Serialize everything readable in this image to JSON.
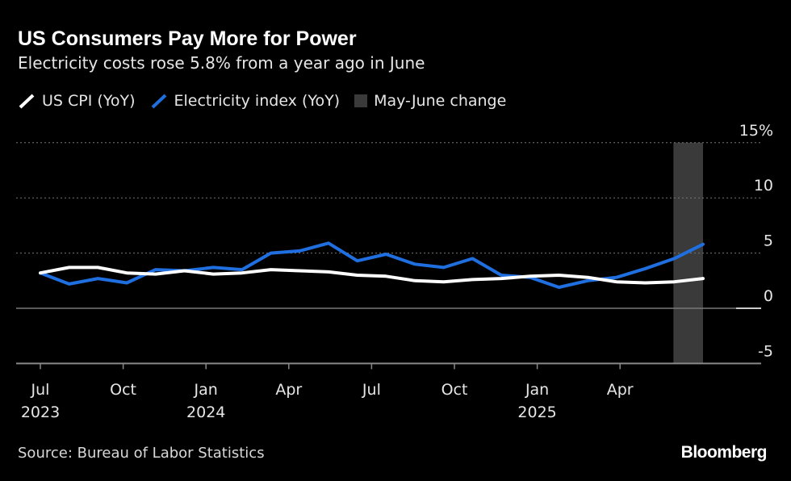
{
  "title": "US Consumers Pay More for Power",
  "subtitle": "Electricity costs rose 5.8% from a year ago in June",
  "source": "Source: Bureau of Labor Statistics",
  "logo": "Bloomberg",
  "chart_data": {
    "type": "line",
    "x": [
      "2023-07",
      "2023-08",
      "2023-09",
      "2023-10",
      "2023-11",
      "2023-12",
      "2024-01",
      "2024-02",
      "2024-03",
      "2024-04",
      "2024-05",
      "2024-06",
      "2024-07",
      "2024-08",
      "2024-09",
      "2024-10",
      "2024-11",
      "2024-12",
      "2025-01",
      "2025-02",
      "2025-03",
      "2025-04",
      "2025-05",
      "2025-06"
    ],
    "series": [
      {
        "name": "US CPI (YoY)",
        "color": "#ffffff",
        "values": [
          3.2,
          3.7,
          3.7,
          3.2,
          3.1,
          3.4,
          3.1,
          3.2,
          3.5,
          3.4,
          3.3,
          3.0,
          2.9,
          2.5,
          2.4,
          2.6,
          2.7,
          2.9,
          3.0,
          2.8,
          2.4,
          2.3,
          2.4,
          2.7
        ]
      },
      {
        "name": "Electricity index (YoY)",
        "color": "#1f6fe0",
        "values": [
          3.2,
          2.2,
          2.7,
          2.3,
          3.5,
          3.4,
          3.7,
          3.5,
          5.0,
          5.2,
          5.9,
          4.3,
          4.9,
          4.0,
          3.7,
          4.5,
          3.0,
          2.8,
          1.9,
          2.5,
          2.8,
          3.6,
          4.5,
          5.8
        ]
      }
    ],
    "shaded": {
      "label": "May-June change",
      "from": "2025-05",
      "to": "2025-06",
      "color": "#3a3a3a"
    },
    "ylim": [
      -5,
      15
    ],
    "yticks": [
      {
        "v": 15,
        "label": "15%"
      },
      {
        "v": 10,
        "label": "10"
      },
      {
        "v": 5,
        "label": "5"
      },
      {
        "v": 0,
        "label": "0"
      },
      {
        "v": -5,
        "label": "-5"
      }
    ],
    "xticks": [
      {
        "m": 0,
        "label": "Jul",
        "year": "2023"
      },
      {
        "m": 3,
        "label": "Oct",
        "year": ""
      },
      {
        "m": 6,
        "label": "Jan",
        "year": "2024"
      },
      {
        "m": 9,
        "label": "Apr",
        "year": ""
      },
      {
        "m": 12,
        "label": "Jul",
        "year": ""
      },
      {
        "m": 15,
        "label": "Oct",
        "year": ""
      },
      {
        "m": 18,
        "label": "Jan",
        "year": "2025"
      },
      {
        "m": 21,
        "label": "Apr",
        "year": ""
      }
    ],
    "grid": true,
    "legend": "top-left"
  }
}
